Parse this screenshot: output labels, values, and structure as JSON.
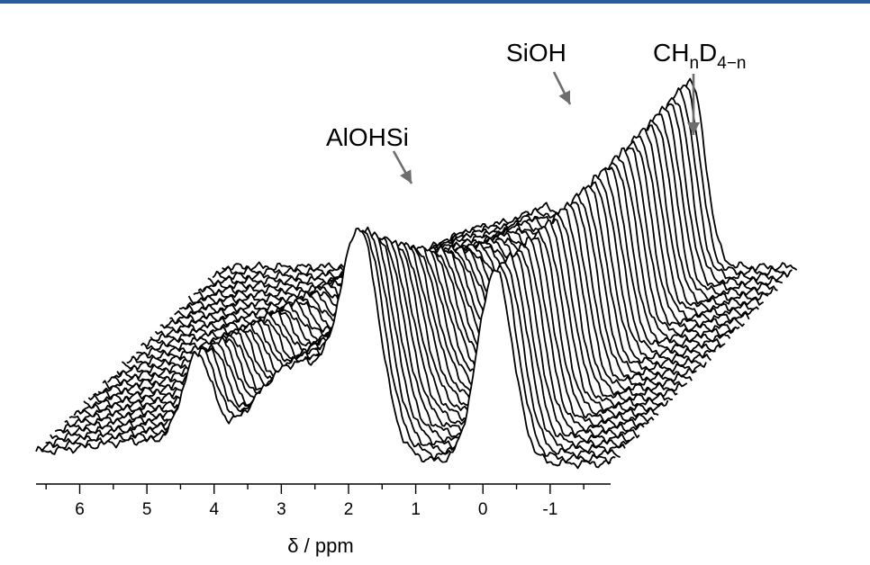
{
  "header_bar_color": "#2a5c9a",
  "line_color": "#000000",
  "arrow_color": "#6e6e6e",
  "chart_data": {
    "type": "line",
    "style": "3d-waterfall stacked spectra",
    "title": "",
    "xlabel": "δ / ppm",
    "xlim": [
      6.65,
      -1.9
    ],
    "x_reversed": true,
    "x_ticks": [
      6,
      5,
      4,
      3,
      2,
      1,
      0,
      -1
    ],
    "x_tick_labels": [
      "6",
      "5",
      "4",
      "3",
      "2",
      "1",
      "0",
      "-1"
    ],
    "minor_tick_step": 0.5,
    "series_count": 40,
    "series_description": "40 successive 1H MAS NMR spectra stacked in depth (waterfall)",
    "front_spectrum_peaks": [
      {
        "position_ppm": 4.25,
        "relative_height": 0.42
      },
      {
        "position_ppm": 1.8,
        "relative_height": 1.0
      },
      {
        "position_ppm": -0.2,
        "relative_height": 1.0
      }
    ],
    "back_spectrum_peaks": [
      {
        "position_ppm": 2.7,
        "relative_height": 0.18
      },
      {
        "position_ppm": 1.75,
        "relative_height": 0.16
      },
      {
        "position_ppm": -0.15,
        "relative_height": 0.8
      },
      {
        "position_ppm": -0.35,
        "relative_height": 0.4
      }
    ],
    "annotations": [
      {
        "label": "AlOHSi",
        "peak_ppm": 1.8
      },
      {
        "label": "SiOH",
        "peak_ppm": -0.2
      },
      {
        "label_main": "CH",
        "sub1": "n",
        "mid": "D",
        "sub2": "4−n",
        "peak_ppm": -0.35
      }
    ]
  }
}
